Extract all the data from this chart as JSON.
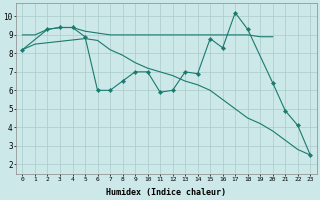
{
  "xlabel": "Humidex (Indice chaleur)",
  "background_color": "#cce8e8",
  "line_color": "#1a7a6e",
  "grid_color": "#aacccc",
  "xlim": [
    -0.5,
    23.5
  ],
  "ylim": [
    1.5,
    10.7
  ],
  "yticks": [
    2,
    3,
    4,
    5,
    6,
    7,
    8,
    9,
    10
  ],
  "xticks": [
    0,
    1,
    2,
    3,
    4,
    5,
    6,
    7,
    8,
    9,
    10,
    11,
    12,
    13,
    14,
    15,
    16,
    17,
    18,
    19,
    20,
    21,
    22,
    23
  ],
  "series": [
    {
      "x": [
        0,
        1,
        2,
        3,
        4,
        5,
        6,
        7,
        8,
        9,
        10,
        11,
        12,
        13,
        14,
        15,
        16,
        17,
        18,
        19,
        20
      ],
      "y": [
        9.0,
        9.0,
        9.3,
        9.4,
        9.4,
        9.2,
        9.1,
        9.0,
        9.0,
        9.0,
        9.0,
        9.0,
        9.0,
        9.0,
        9.0,
        9.0,
        9.0,
        9.0,
        9.0,
        8.9,
        8.9
      ],
      "marker": false
    },
    {
      "x": [
        0,
        2,
        3,
        4,
        5,
        6,
        7,
        8,
        9,
        10,
        11,
        12,
        13,
        14,
        15,
        16,
        17,
        18,
        20,
        21,
        22,
        23
      ],
      "y": [
        8.2,
        9.3,
        9.4,
        9.4,
        8.9,
        6.0,
        6.0,
        6.5,
        7.0,
        7.0,
        5.9,
        6.0,
        7.0,
        6.9,
        8.8,
        8.3,
        10.2,
        9.3,
        6.4,
        4.9,
        4.1,
        2.5
      ],
      "marker": true
    },
    {
      "x": [
        0,
        1,
        5,
        6,
        7,
        8,
        9,
        10,
        11,
        12,
        13,
        14,
        15,
        16,
        17,
        18,
        19,
        20,
        21,
        22,
        23
      ],
      "y": [
        8.2,
        8.5,
        8.8,
        8.7,
        8.2,
        7.9,
        7.5,
        7.2,
        7.0,
        6.8,
        6.5,
        6.3,
        6.0,
        5.5,
        5.0,
        4.5,
        4.2,
        3.8,
        3.3,
        2.8,
        2.5
      ],
      "marker": false
    }
  ]
}
